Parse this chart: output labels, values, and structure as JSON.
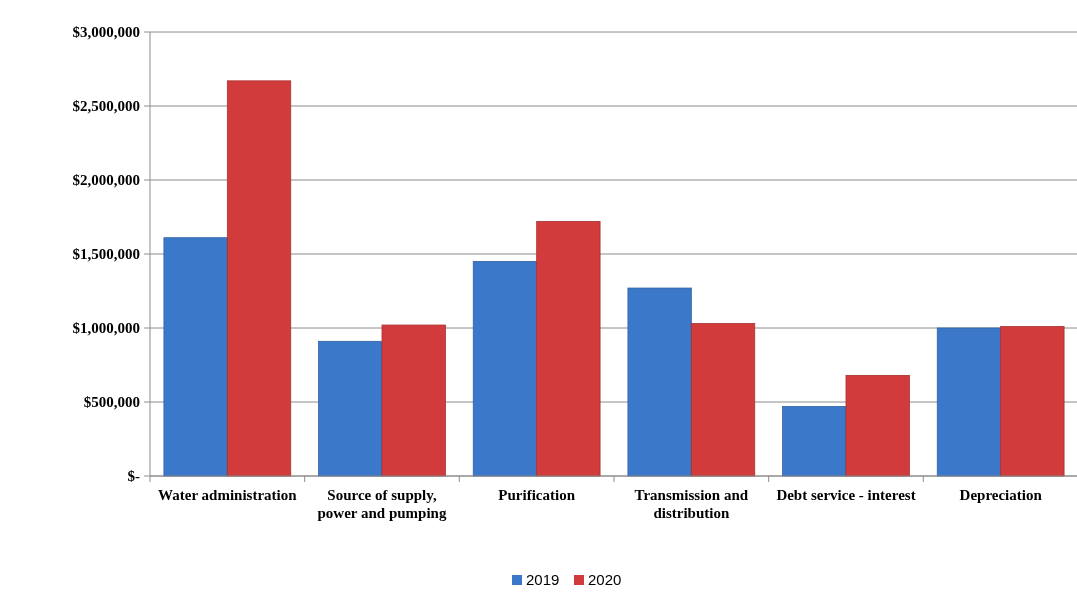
{
  "chart_data": {
    "type": "bar",
    "categories": [
      "Water administration",
      "Source of supply, power and pumping",
      "Purification",
      "Transmission and distribution",
      "Debt service - interest",
      "Depreciation"
    ],
    "series": [
      {
        "name": "2019",
        "color": "#3b78c9",
        "values": [
          1610000,
          910000,
          1450000,
          1270000,
          470000,
          1000000
        ]
      },
      {
        "name": "2020",
        "color": "#d23b3b",
        "values": [
          2670000,
          1020000,
          1720000,
          1030000,
          680000,
          1010000
        ]
      }
    ],
    "ylim": [
      0,
      3000000
    ],
    "yticks": [
      {
        "value": 0,
        "label": "$-"
      },
      {
        "value": 500000,
        "label": "$500,000"
      },
      {
        "value": 1000000,
        "label": "$1,000,000"
      },
      {
        "value": 1500000,
        "label": "$1,500,000"
      },
      {
        "value": 2000000,
        "label": "$2,000,000"
      },
      {
        "value": 2500000,
        "label": "$2,500,000"
      },
      {
        "value": 3000000,
        "label": "$3,000,000"
      }
    ],
    "grid": "y",
    "legend": "bottom"
  }
}
